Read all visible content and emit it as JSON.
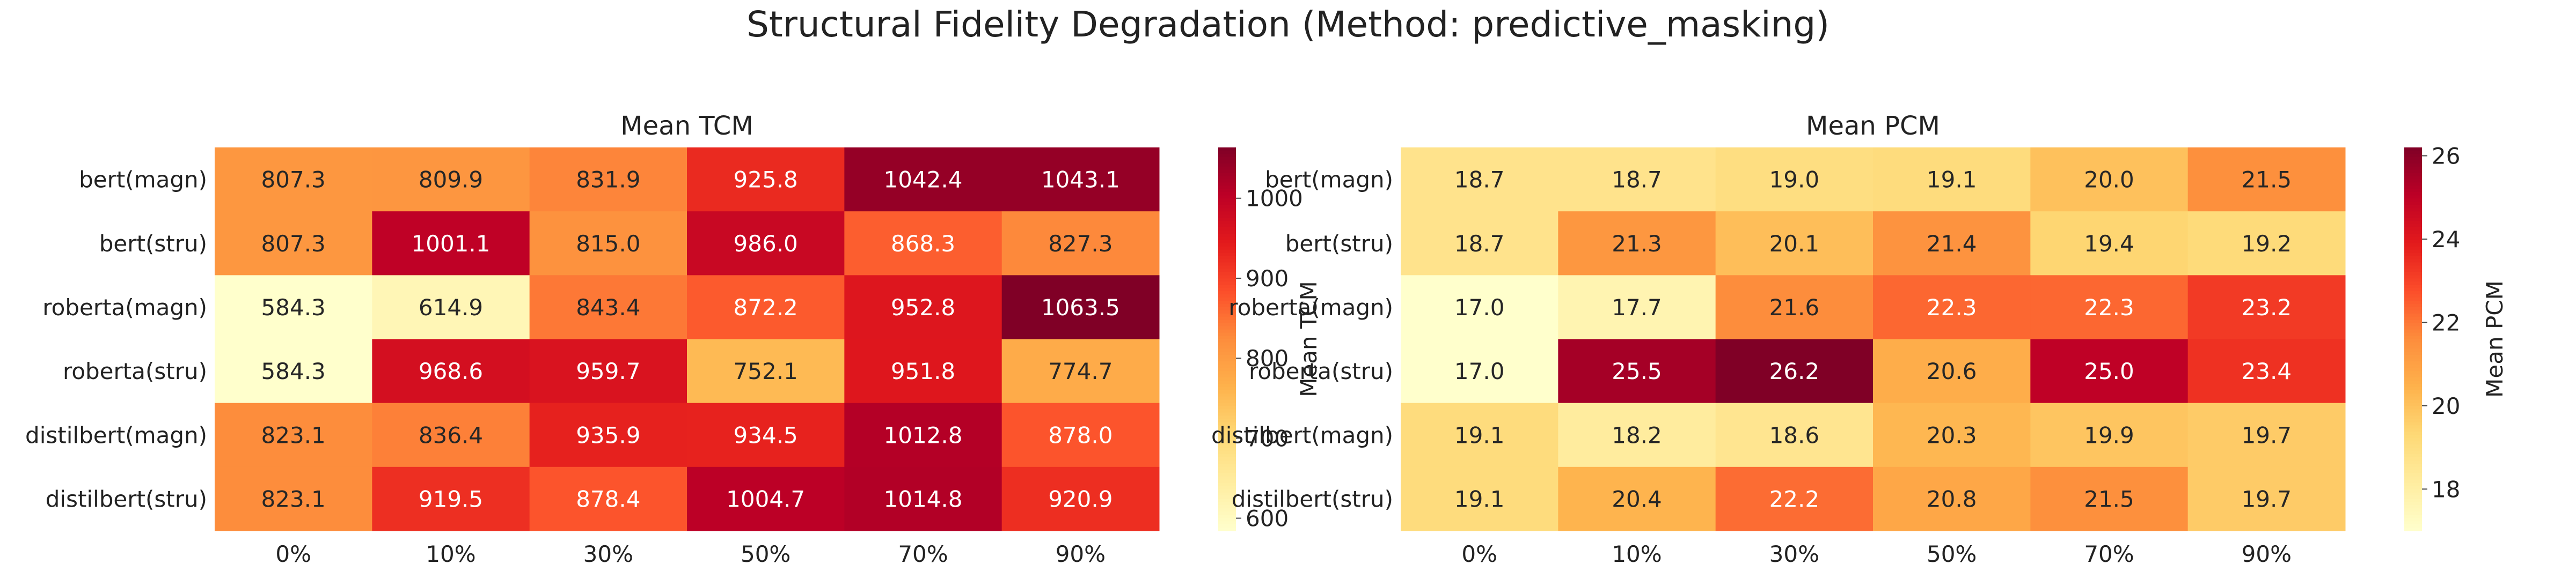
{
  "figure_title": "Structural Fidelity Degradation (Method: predictive_masking)",
  "chart_data": [
    {
      "type": "heatmap",
      "title": "Mean TCM",
      "colorbar_label": "Mean TCM",
      "rows": [
        "bert(magn)",
        "bert(stru)",
        "roberta(magn)",
        "roberta(stru)",
        "distilbert(magn)",
        "distilbert(stru)"
      ],
      "columns": [
        "0%",
        "10%",
        "30%",
        "50%",
        "70%",
        "90%"
      ],
      "values": [
        [
          807.3,
          809.9,
          831.9,
          925.8,
          1042.4,
          1043.1
        ],
        [
          807.3,
          1001.1,
          815.0,
          986.0,
          868.3,
          827.3
        ],
        [
          584.3,
          614.9,
          843.4,
          872.2,
          952.8,
          1063.5
        ],
        [
          584.3,
          968.6,
          959.7,
          752.1,
          951.8,
          774.7
        ],
        [
          823.1,
          836.4,
          935.9,
          934.5,
          1012.8,
          878.0
        ],
        [
          823.1,
          919.5,
          878.4,
          1004.7,
          1014.8,
          920.9
        ]
      ],
      "colormap": "YlOrRd",
      "vmin": 584.3,
      "vmax": 1063.5,
      "colorbar_ticks": [
        600,
        700,
        800,
        900,
        1000
      ],
      "annotations": "one decimal in every cell"
    },
    {
      "type": "heatmap",
      "title": "Mean PCM",
      "colorbar_label": "Mean PCM",
      "rows": [
        "bert(magn)",
        "bert(stru)",
        "roberta(magn)",
        "roberta(stru)",
        "distilbert(magn)",
        "distilbert(stru)"
      ],
      "columns": [
        "0%",
        "10%",
        "30%",
        "50%",
        "70%",
        "90%"
      ],
      "values": [
        [
          18.7,
          18.7,
          19.0,
          19.1,
          20.0,
          21.5
        ],
        [
          18.7,
          21.3,
          20.1,
          21.4,
          19.4,
          19.2
        ],
        [
          17.0,
          17.7,
          21.6,
          22.3,
          22.3,
          23.2
        ],
        [
          17.0,
          25.5,
          26.2,
          20.6,
          25.0,
          23.4
        ],
        [
          19.1,
          18.2,
          18.6,
          20.3,
          19.9,
          19.7
        ],
        [
          19.1,
          20.4,
          22.2,
          20.8,
          21.5,
          19.7
        ]
      ],
      "colormap": "YlOrRd",
      "vmin": 17.0,
      "vmax": 26.2,
      "colorbar_ticks": [
        18,
        20,
        22,
        24,
        26
      ],
      "annotations": "one decimal in every cell"
    }
  ]
}
